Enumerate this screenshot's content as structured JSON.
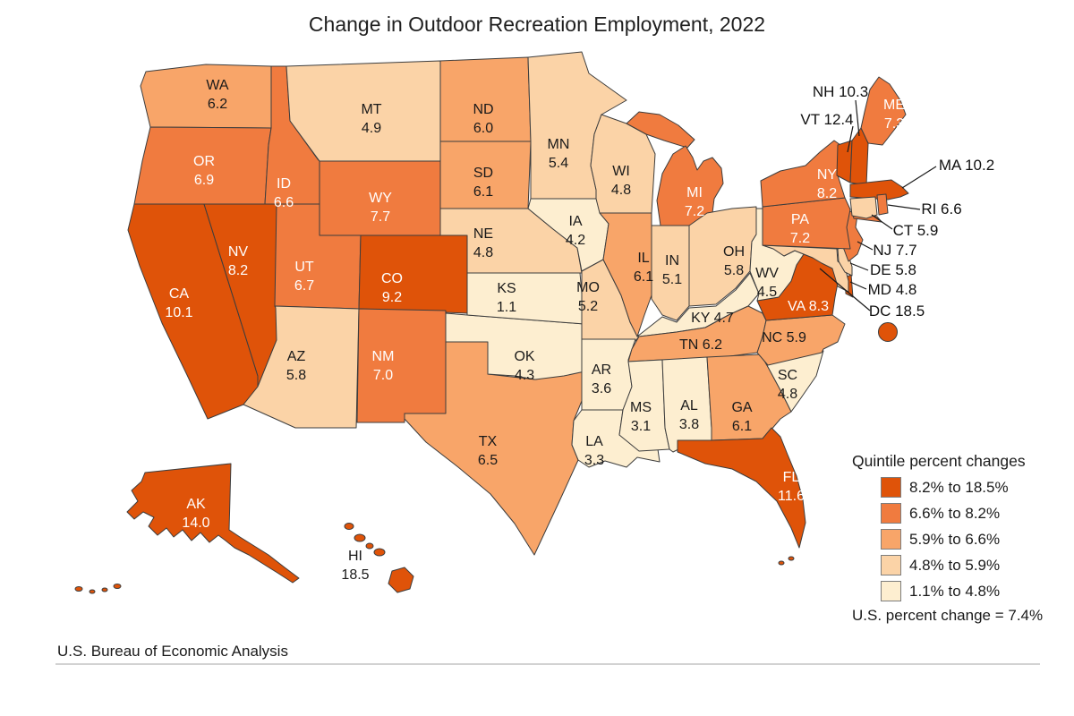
{
  "title": "Change in Outdoor Recreation Employment, 2022",
  "attribution": "U.S. Bureau of Economic Analysis",
  "legend": {
    "title": "Quintile percent changes",
    "items": [
      {
        "label": "8.2% to 18.5%",
        "color": "#df5309"
      },
      {
        "label": "6.6% to 8.2%",
        "color": "#f07b3f"
      },
      {
        "label": "5.9% to 6.6%",
        "color": "#f8a569"
      },
      {
        "label": "4.8% to 5.9%",
        "color": "#fbd3a7"
      },
      {
        "label": "1.1% to 4.8%",
        "color": "#fdeed0"
      }
    ],
    "footnote": "U.S. percent change = 7.4%"
  },
  "chart_data": {
    "type": "choropleth",
    "region": "United States",
    "unit": "percent change in outdoor recreation employment, 2022",
    "us_value": "7.4",
    "states": [
      {
        "abbr": "WA",
        "value": "6.2",
        "quintile": 3
      },
      {
        "abbr": "OR",
        "value": "6.9",
        "quintile": 2
      },
      {
        "abbr": "CA",
        "value": "10.1",
        "quintile": 1
      },
      {
        "abbr": "NV",
        "value": "8.2",
        "quintile": 1
      },
      {
        "abbr": "ID",
        "value": "6.6",
        "quintile": 2
      },
      {
        "abbr": "MT",
        "value": "4.9",
        "quintile": 4
      },
      {
        "abbr": "WY",
        "value": "7.7",
        "quintile": 2
      },
      {
        "abbr": "UT",
        "value": "6.7",
        "quintile": 2
      },
      {
        "abbr": "CO",
        "value": "9.2",
        "quintile": 1
      },
      {
        "abbr": "AZ",
        "value": "5.8",
        "quintile": 4
      },
      {
        "abbr": "NM",
        "value": "7.0",
        "quintile": 2
      },
      {
        "abbr": "ND",
        "value": "6.0",
        "quintile": 3
      },
      {
        "abbr": "SD",
        "value": "6.1",
        "quintile": 3
      },
      {
        "abbr": "NE",
        "value": "4.8",
        "quintile": 4
      },
      {
        "abbr": "KS",
        "value": "1.1",
        "quintile": 5
      },
      {
        "abbr": "OK",
        "value": "4.3",
        "quintile": 5
      },
      {
        "abbr": "TX",
        "value": "6.5",
        "quintile": 3
      },
      {
        "abbr": "MN",
        "value": "5.4",
        "quintile": 4
      },
      {
        "abbr": "IA",
        "value": "4.2",
        "quintile": 5
      },
      {
        "abbr": "MO",
        "value": "5.2",
        "quintile": 4
      },
      {
        "abbr": "AR",
        "value": "3.6",
        "quintile": 5
      },
      {
        "abbr": "LA",
        "value": "3.3",
        "quintile": 5
      },
      {
        "abbr": "WI",
        "value": "4.8",
        "quintile": 4
      },
      {
        "abbr": "IL",
        "value": "6.1",
        "quintile": 3
      },
      {
        "abbr": "IN",
        "value": "5.1",
        "quintile": 4
      },
      {
        "abbr": "MI",
        "value": "7.2",
        "quintile": 2
      },
      {
        "abbr": "OH",
        "value": "5.8",
        "quintile": 4
      },
      {
        "abbr": "KY",
        "value": "4.7",
        "quintile": 5
      },
      {
        "abbr": "TN",
        "value": "6.2",
        "quintile": 3
      },
      {
        "abbr": "MS",
        "value": "3.1",
        "quintile": 5
      },
      {
        "abbr": "AL",
        "value": "3.8",
        "quintile": 5
      },
      {
        "abbr": "GA",
        "value": "6.1",
        "quintile": 3
      },
      {
        "abbr": "FL",
        "value": "11.6",
        "quintile": 1
      },
      {
        "abbr": "SC",
        "value": "4.8",
        "quintile": 5
      },
      {
        "abbr": "NC",
        "value": "5.9",
        "quintile": 3
      },
      {
        "abbr": "VA",
        "value": "8.3",
        "quintile": 1
      },
      {
        "abbr": "WV",
        "value": "4.5",
        "quintile": 5
      },
      {
        "abbr": "MD",
        "value": "4.8",
        "quintile": 4
      },
      {
        "abbr": "DE",
        "value": "5.8",
        "quintile": 4
      },
      {
        "abbr": "NJ",
        "value": "7.7",
        "quintile": 2
      },
      {
        "abbr": "PA",
        "value": "7.2",
        "quintile": 2
      },
      {
        "abbr": "NY",
        "value": "8.2",
        "quintile": 2
      },
      {
        "abbr": "VT",
        "value": "12.4",
        "quintile": 1
      },
      {
        "abbr": "NH",
        "value": "10.3",
        "quintile": 1
      },
      {
        "abbr": "MA",
        "value": "10.2",
        "quintile": 1
      },
      {
        "abbr": "CT",
        "value": "5.9",
        "quintile": 4
      },
      {
        "abbr": "RI",
        "value": "6.6",
        "quintile": 2
      },
      {
        "abbr": "ME",
        "value": "7.3",
        "quintile": 2
      },
      {
        "abbr": "AK",
        "value": "14.0",
        "quintile": 1
      },
      {
        "abbr": "HI",
        "value": "18.5",
        "quintile": 1
      },
      {
        "abbr": "DC",
        "value": "18.5",
        "quintile": 1
      }
    ]
  }
}
